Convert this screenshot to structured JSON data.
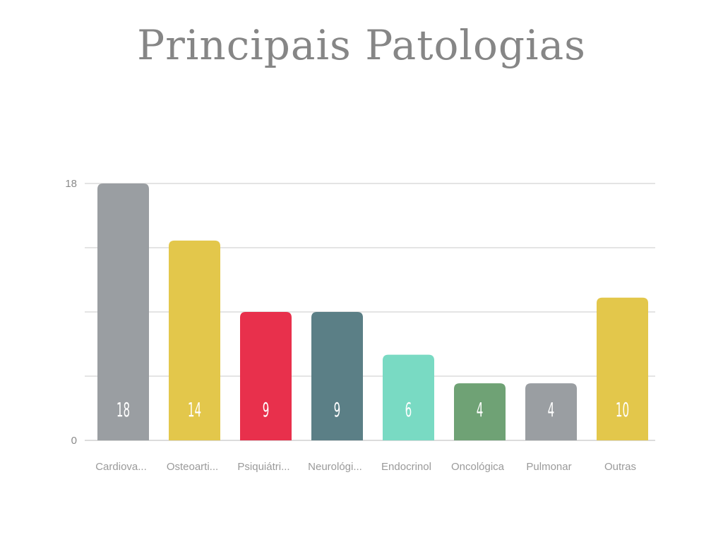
{
  "chart_data": {
    "type": "bar",
    "title": "Principais Patologias",
    "xlabel": "",
    "ylabel": "",
    "categories": [
      "Cardiova...",
      "Osteoarti...",
      "Psiquiátri...",
      "Neurológi...",
      "Endocrinol",
      "Oncológica",
      "Pulmonar",
      "Outras"
    ],
    "values": [
      18,
      14,
      9,
      9,
      6,
      4,
      4,
      10
    ],
    "colors": [
      "#9a9ea2",
      "#e3c74b",
      "#e8304c",
      "#5b7f86",
      "#79dac3",
      "#6fa275",
      "#9a9ea2",
      "#e3c74b"
    ],
    "yticks": [
      "18",
      "0"
    ],
    "ylim": [
      0,
      18
    ],
    "grid": true,
    "legend": "none"
  }
}
